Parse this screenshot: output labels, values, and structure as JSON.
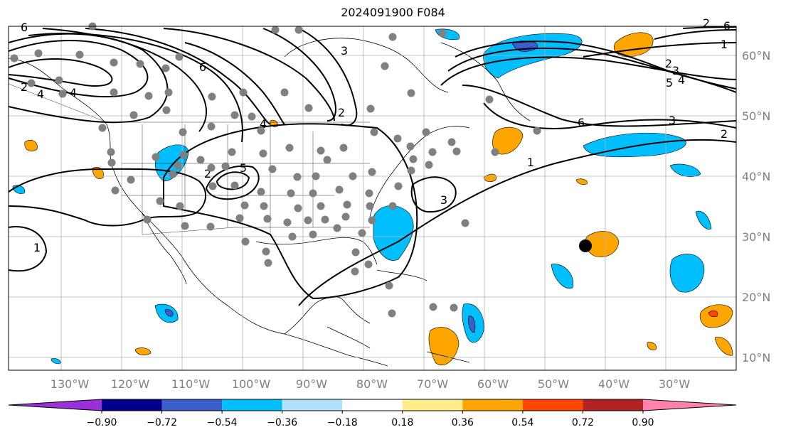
{
  "title": "2024091900 F084",
  "lon_labels": [
    "130°W",
    "120°W",
    "110°W",
    "100°W",
    "90°W",
    "80°W",
    "70°W",
    "60°W",
    "50°W",
    "40°W",
    "30°W"
  ],
  "lat_labels": [
    "60°N",
    "50°N",
    "40°N",
    "30°N",
    "20°N",
    "10°N"
  ],
  "contour_labels": [
    "6",
    "6",
    "3",
    "4",
    "2",
    "4",
    "5",
    "2",
    "2",
    "6",
    "3",
    "2",
    "1",
    "3",
    "4",
    "1",
    "2",
    "3",
    "4",
    "5",
    "6",
    "2",
    "1"
  ],
  "colorbar": {
    "ticks": [
      "−0.90",
      "−0.72",
      "−0.54",
      "−0.36",
      "−0.18",
      "0.18",
      "0.36",
      "0.54",
      "0.72",
      "0.90"
    ],
    "colors": [
      "#9b30d9",
      "#00008b",
      "#3a5fcd",
      "#00bfff",
      "#b0e2ff",
      "#ffffff",
      "#ffeb8a",
      "#ffa500",
      "#ff4500",
      "#b22222",
      "#ff82ab"
    ]
  },
  "colors": {
    "positive": "#ffa500",
    "negative": "#00bfff",
    "strong_negative": "#3a5fcd",
    "station": "#808080"
  }
}
